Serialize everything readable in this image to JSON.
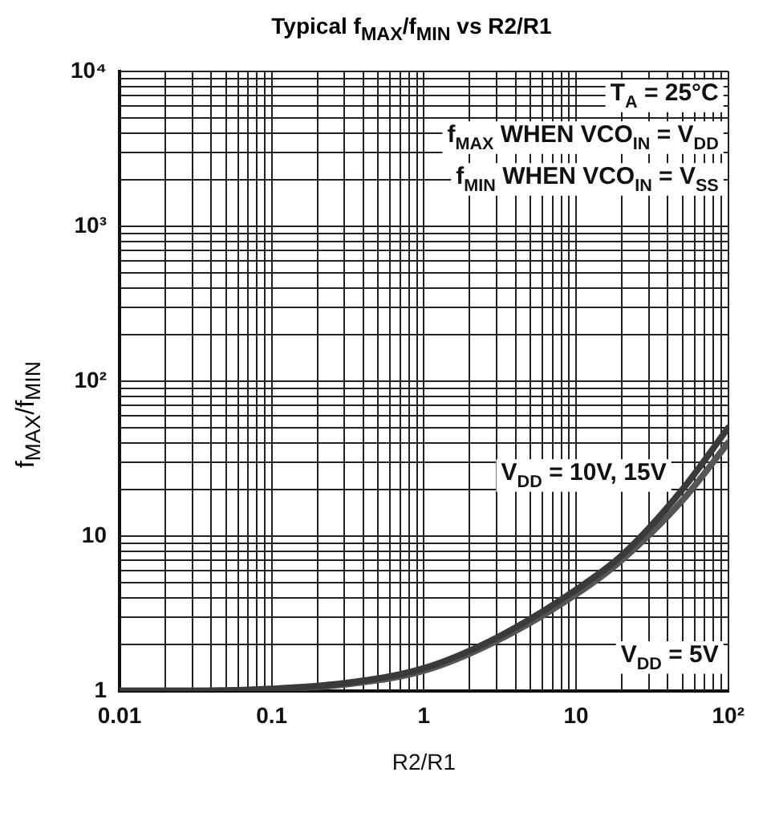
{
  "chart_data": {
    "type": "line",
    "title": "Typical f$_{MAX}$/f$_{MIN}$ vs R2/R1",
    "xlabel": "R2/R1",
    "ylabel": "f$_{MAX}$/f$_{MIN}$",
    "x": [
      0.01,
      0.03,
      0.1,
      0.3,
      1,
      3,
      10,
      20,
      50,
      100
    ],
    "series": [
      {
        "name": "V$_{DD}$ = 10V, 15V",
        "color": "#3a3a3a",
        "values": [
          1,
          1,
          1.03,
          1.12,
          1.4,
          2.2,
          4.5,
          7.5,
          20,
          50
        ]
      },
      {
        "name": "V$_{DD}$ = 5V",
        "color": "#555555",
        "values": [
          1,
          1,
          1.02,
          1.1,
          1.35,
          2.1,
          4.2,
          7,
          17,
          40
        ]
      }
    ],
    "log": "xy",
    "xlim": [
      0.01,
      100
    ],
    "ylim": [
      1,
      10000
    ],
    "xticks": [
      "0.01",
      {
        "value": 0.02,
        "label": null
      },
      {
        "value": 0.03,
        "label": null
      },
      {
        "value": 0.04,
        "label": null
      },
      {
        "value": 0.05,
        "label": null
      },
      {
        "value": 0.06,
        "label": null
      },
      {
        "value": 0.07,
        "label": null
      },
      {
        "value": 0.08,
        "label": null
      },
      {
        "value": 0.09,
        "label": null
      },
      0.1,
      {
        "value": 0.2,
        "label": null
      },
      {
        "value": 0.3,
        "label": null
      },
      {
        "value": 0.4,
        "label": null
      },
      {
        "value": 0.5,
        "label": null
      },
      {
        "value": 0.6,
        "label": null
      },
      {
        "value": 0.7,
        "label": null
      },
      {
        "value": 0.8,
        "label": null
      },
      {
        "value": 0.9,
        "label": null
      },
      1,
      {
        "value": 2,
        "label": null
      },
      {
        "value": 3,
        "label": null
      },
      {
        "value": 4,
        "label": null
      },
      {
        "value": 5,
        "label": null
      },
      {
        "value": 6,
        "label": null
      },
      {
        "value": 7,
        "label": null
      },
      {
        "value": 8,
        "label": null
      },
      {
        "value": 9,
        "label": null
      },
      10,
      {
        "value": 20,
        "label": null
      },
      {
        "value": 30,
        "label": null
      },
      {
        "value": 40,
        "label": null
      },
      {
        "value": 50,
        "label": null
      },
      {
        "value": 60,
        "label": null
      },
      {
        "value": 70,
        "label": null
      },
      {
        "value": 80,
        "label": null
      },
      {
        "value": 90,
        "label": null
      },
      {
        "value": 100,
        "label": "10²"
      }
    ],
    "yticks": [
      1,
      {
        "value": 2,
        "label": null
      },
      {
        "value": 3,
        "label": null
      },
      {
        "value": 4,
        "label": null
      },
      {
        "value": 5,
        "label": null
      },
      {
        "value": 6,
        "label": null
      },
      {
        "value": 7,
        "label": null
      },
      {
        "value": 8,
        "label": null
      },
      {
        "value": 9,
        "label": null
      },
      10,
      {
        "value": 20,
        "label": null
      },
      {
        "value": 30,
        "label": null
      },
      {
        "value": 40,
        "label": null
      },
      {
        "value": 50,
        "label": null
      },
      {
        "value": 60,
        "label": null
      },
      {
        "value": 70,
        "label": null
      },
      {
        "value": 80,
        "label": null
      },
      {
        "value": 90,
        "label": null
      },
      {
        "value": 100,
        "label": "10²"
      },
      {
        "value": 200,
        "label": null
      },
      {
        "value": 300,
        "label": null
      },
      {
        "value": 400,
        "label": null
      },
      {
        "value": 500,
        "label": null
      },
      {
        "value": 600,
        "label": null
      },
      {
        "value": 700,
        "label": null
      },
      {
        "value": 800,
        "label": null
      },
      {
        "value": 900,
        "label": null
      },
      {
        "value": 1000,
        "label": "10³"
      },
      {
        "value": 2000,
        "label": null
      },
      {
        "value": 3000,
        "label": null
      },
      {
        "value": 4000,
        "label": null
      },
      {
        "value": 5000,
        "label": null
      },
      {
        "value": 6000,
        "label": null
      },
      {
        "value": 7000,
        "label": null
      },
      {
        "value": 8000,
        "label": null
      },
      {
        "value": 9000,
        "label": null
      },
      {
        "value": 10000,
        "label": "10⁴"
      }
    ],
    "grid": true,
    "marker": "none",
    "line_style": "solid",
    "annotations": [
      "T$_{A}$ = 25°C",
      "f$_{MAX}$ WHEN VCO$_{IN}$ = V$_{DD}$",
      "f$_{MIN}$ WHEN VCO$_{IN}$ = V$_{SS}$"
    ]
  }
}
